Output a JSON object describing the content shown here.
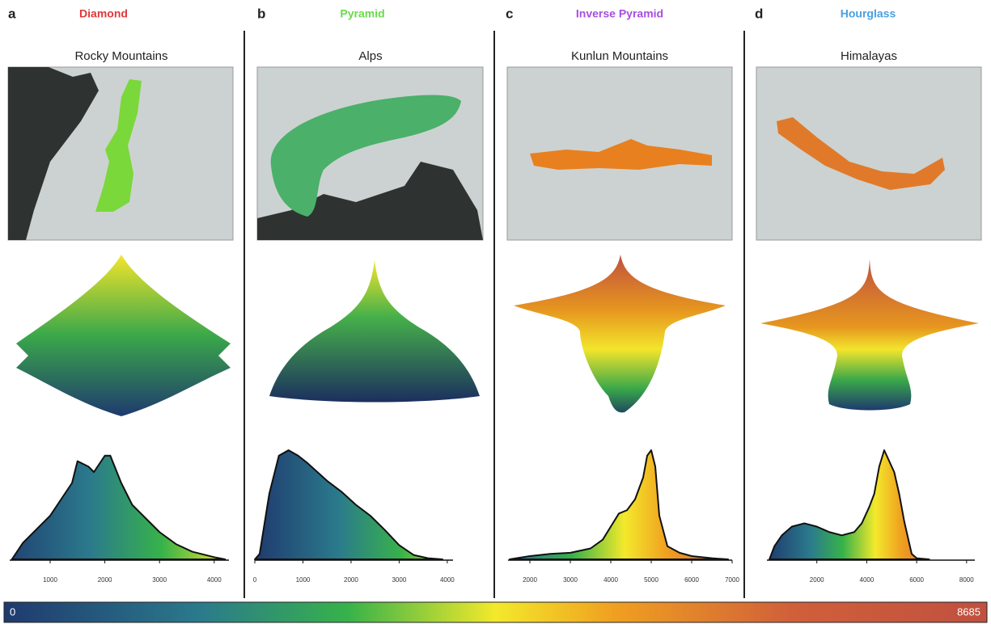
{
  "chart_data": [
    {
      "type": "area",
      "label": "a",
      "shape": "Diamond",
      "shape_color": "#e0383a",
      "region": "Rocky Mountains",
      "x": [
        300,
        500,
        800,
        1000,
        1200,
        1400,
        1500,
        1700,
        1800,
        2000,
        2100,
        2300,
        2500,
        2800,
        3000,
        3300,
        3600,
        4000,
        4200
      ],
      "values": [
        0,
        0.15,
        0.3,
        0.4,
        0.55,
        0.7,
        0.9,
        0.85,
        0.8,
        0.95,
        0.95,
        0.7,
        0.5,
        0.35,
        0.25,
        0.14,
        0.07,
        0.02,
        0
      ],
      "xlim": [
        260,
        4270
      ],
      "xticks": [
        1000,
        2000,
        3000,
        4000
      ]
    },
    {
      "type": "area",
      "label": "b",
      "shape": "Pyramid",
      "shape_color": "#6ad94b",
      "region": "Alps",
      "x": [
        0,
        100,
        300,
        500,
        700,
        900,
        1100,
        1300,
        1500,
        1800,
        2100,
        2400,
        2700,
        3000,
        3300,
        3600,
        3900
      ],
      "values": [
        0,
        0.05,
        0.6,
        0.95,
        1,
        0.95,
        0.88,
        0.8,
        0.72,
        0.62,
        0.5,
        0.4,
        0.27,
        0.13,
        0.04,
        0.01,
        0
      ],
      "xlim": [
        0,
        4120
      ],
      "xticks": [
        0,
        1000,
        2000,
        3000,
        4000
      ]
    },
    {
      "type": "area",
      "label": "c",
      "shape": "Inverse Pyramid",
      "shape_color": "#a84ee0",
      "region": "Kunlun Mountains",
      "x": [
        1500,
        2000,
        2500,
        3000,
        3500,
        3800,
        4000,
        4200,
        4400,
        4600,
        4800,
        4900,
        5000,
        5100,
        5200,
        5400,
        5700,
        6000,
        6500,
        6900
      ],
      "values": [
        0,
        0.03,
        0.05,
        0.06,
        0.1,
        0.18,
        0.3,
        0.42,
        0.45,
        0.55,
        0.75,
        0.95,
        1,
        0.85,
        0.4,
        0.12,
        0.06,
        0.03,
        0.01,
        0
      ],
      "xlim": [
        1460,
        7000
      ],
      "xticks": [
        2000,
        3000,
        4000,
        5000,
        6000,
        7000
      ]
    },
    {
      "type": "area",
      "label": "d",
      "shape": "Hourglass",
      "shape_color": "#4aa0e0",
      "region": "Himalayas",
      "x": [
        100,
        300,
        600,
        1000,
        1500,
        2000,
        2500,
        3000,
        3500,
        3800,
        4100,
        4300,
        4500,
        4700,
        4900,
        5100,
        5300,
        5500,
        5800,
        6000,
        6500
      ],
      "values": [
        0,
        0.12,
        0.22,
        0.3,
        0.33,
        0.3,
        0.25,
        0.22,
        0.25,
        0.33,
        0.48,
        0.6,
        0.85,
        1,
        0.9,
        0.8,
        0.6,
        0.35,
        0.05,
        0.01,
        0
      ],
      "xlim": [
        0,
        8330
      ],
      "xticks": [
        2000,
        4000,
        6000,
        8000
      ]
    }
  ],
  "colorbar": {
    "min": 0,
    "max": 8685
  }
}
